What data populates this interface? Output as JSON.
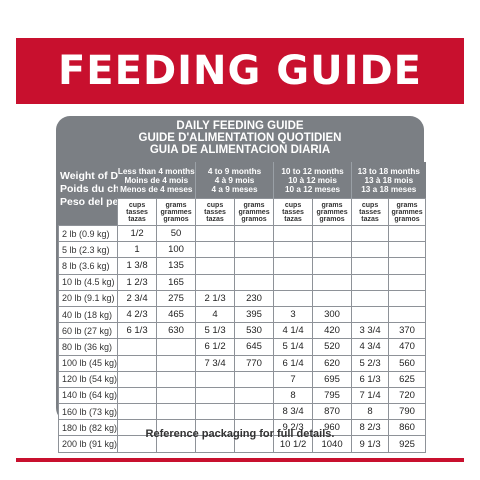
{
  "banner": {
    "title": "FEEDING GUIDE"
  },
  "table": {
    "title_lines": [
      "DAILY FEEDING GUIDE",
      "GUIDE D'ALIMENTATION QUOTIDIEN",
      "GUIA DE ALIMENTACION DIARIA"
    ],
    "weight_header": [
      "Weight of Dog",
      "Poids du chien",
      "Peso del perro"
    ],
    "age_groups": [
      [
        "Less than 4 months",
        "Moins de 4 mois",
        "Menos de 4 meses"
      ],
      [
        "4 to 9 months",
        "4 à 9 mois",
        "4 a 9 meses"
      ],
      [
        "10 to 12 months",
        "10 à 12 mois",
        "10 a 12 meses"
      ],
      [
        "13 to 18 months",
        "13 à 18 mois",
        "13 a 18 meses"
      ]
    ],
    "unit_cups": [
      "cups",
      "tasses",
      "tazas"
    ],
    "unit_grams": [
      "grams",
      "grammes",
      "gramos"
    ],
    "rows": [
      [
        "2 lb (0.9 kg)",
        "1/2",
        "50",
        "",
        "",
        "",
        "",
        "",
        ""
      ],
      [
        "5 lb (2.3 kg)",
        "1",
        "100",
        "",
        "",
        "",
        "",
        "",
        ""
      ],
      [
        "8 lb (3.6 kg)",
        "1 3/8",
        "135",
        "",
        "",
        "",
        "",
        "",
        ""
      ],
      [
        "10 lb (4.5 kg)",
        "1 2/3",
        "165",
        "",
        "",
        "",
        "",
        "",
        ""
      ],
      [
        "20 lb (9.1 kg)",
        "2 3/4",
        "275",
        "2 1/3",
        "230",
        "",
        "",
        "",
        ""
      ],
      [
        "40 lb (18 kg)",
        "4 2/3",
        "465",
        "4",
        "395",
        "3",
        "300",
        "",
        ""
      ],
      [
        "60 lb (27 kg)",
        "6 1/3",
        "630",
        "5 1/3",
        "530",
        "4 1/4",
        "420",
        "3 3/4",
        "370"
      ],
      [
        "80 lb (36 kg)",
        "",
        "",
        "6 1/2",
        "645",
        "5 1/4",
        "520",
        "4 3/4",
        "470"
      ],
      [
        "100 lb (45 kg)",
        "",
        "",
        "7 3/4",
        "770",
        "6 1/4",
        "620",
        "5 2/3",
        "560"
      ],
      [
        "120 lb (54 kg)",
        "",
        "",
        "",
        "",
        "7",
        "695",
        "6 1/3",
        "625"
      ],
      [
        "140 lb (64 kg)",
        "",
        "",
        "",
        "",
        "8",
        "795",
        "7 1/4",
        "720"
      ],
      [
        "160 lb (73 kg)",
        "",
        "",
        "",
        "",
        "8 3/4",
        "870",
        "8",
        "790"
      ],
      [
        "180 lb (82 kg)",
        "",
        "",
        "",
        "",
        "9 2/3",
        "960",
        "8 2/3",
        "860"
      ],
      [
        "200 lb (91 kg)",
        "",
        "",
        "",
        "",
        "10 1/2",
        "1040",
        "9 1/3",
        "925"
      ]
    ]
  },
  "footnote": "Reference packaging for full details."
}
